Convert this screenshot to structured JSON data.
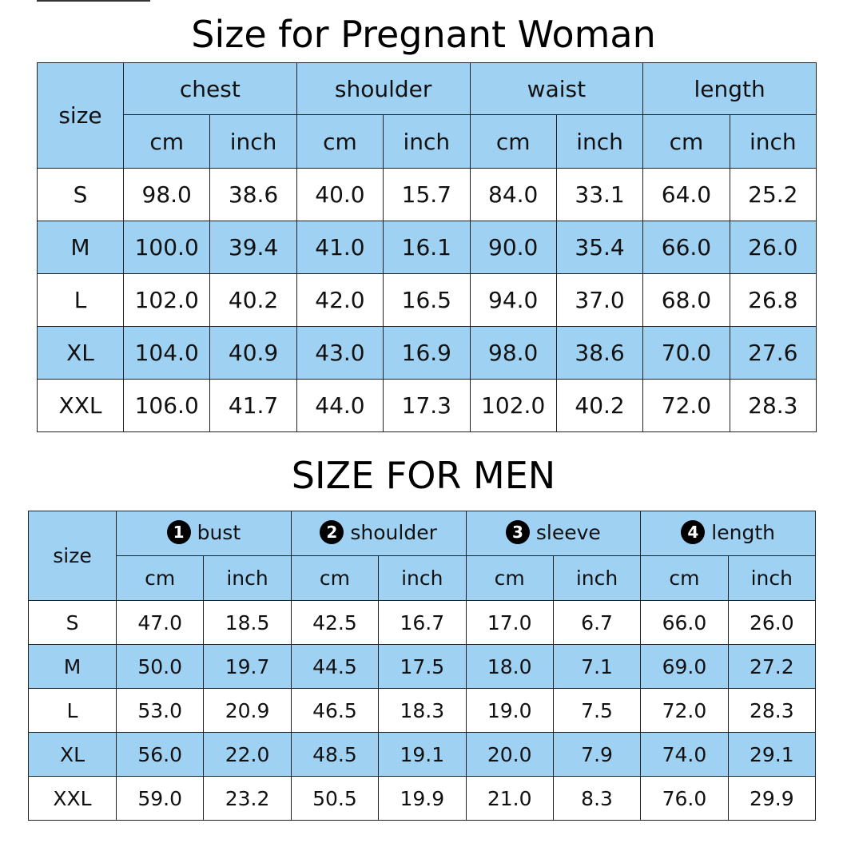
{
  "title_pregnant": "Size for Pregnant Woman",
  "title_men": "SIZE FOR MEN",
  "pregnant_table": {
    "size_label": "size",
    "groups": [
      "chest",
      "shoulder",
      "waist",
      "length"
    ],
    "units": [
      "cm",
      "inch",
      "cm",
      "inch",
      "cm",
      "inch",
      "cm",
      "inch"
    ],
    "rows": [
      {
        "size": "S",
        "values": [
          "98.0",
          "38.6",
          "40.0",
          "15.7",
          "84.0",
          "33.1",
          "64.0",
          "25.2"
        ]
      },
      {
        "size": "M",
        "values": [
          "100.0",
          "39.4",
          "41.0",
          "16.1",
          "90.0",
          "35.4",
          "66.0",
          "26.0"
        ]
      },
      {
        "size": "L",
        "values": [
          "102.0",
          "40.2",
          "42.0",
          "16.5",
          "94.0",
          "37.0",
          "68.0",
          "26.8"
        ]
      },
      {
        "size": "XL",
        "values": [
          "104.0",
          "40.9",
          "43.0",
          "16.9",
          "98.0",
          "38.6",
          "70.0",
          "27.6"
        ]
      },
      {
        "size": "XXL",
        "values": [
          "106.0",
          "41.7",
          "44.0",
          "17.3",
          "102.0",
          "40.2",
          "72.0",
          "28.3"
        ]
      }
    ]
  },
  "men_table": {
    "size_label": "size",
    "groups": [
      {
        "number": "1",
        "label": "bust"
      },
      {
        "number": "2",
        "label": "shoulder"
      },
      {
        "number": "3",
        "label": "sleeve"
      },
      {
        "number": "4",
        "label": "length"
      }
    ],
    "units": [
      "cm",
      "inch",
      "cm",
      "inch",
      "cm",
      "inch",
      "cm",
      "inch"
    ],
    "rows": [
      {
        "size": "S",
        "values": [
          "47.0",
          "18.5",
          "42.5",
          "16.7",
          "17.0",
          "6.7",
          "66.0",
          "26.0"
        ]
      },
      {
        "size": "M",
        "values": [
          "50.0",
          "19.7",
          "44.5",
          "17.5",
          "18.0",
          "7.1",
          "69.0",
          "27.2"
        ]
      },
      {
        "size": "L",
        "values": [
          "53.0",
          "20.9",
          "46.5",
          "18.3",
          "19.0",
          "7.5",
          "72.0",
          "28.3"
        ]
      },
      {
        "size": "XL",
        "values": [
          "56.0",
          "22.0",
          "48.5",
          "19.1",
          "20.0",
          "7.9",
          "74.0",
          "29.1"
        ]
      },
      {
        "size": "XXL",
        "values": [
          "59.0",
          "23.2",
          "50.5",
          "19.9",
          "21.0",
          "8.3",
          "76.0",
          "29.9"
        ]
      }
    ]
  },
  "colors": {
    "header_blue": "#9fd1f3",
    "row_alt_blue": "#9fd1f3",
    "row_white": "#ffffff",
    "border": "#222222"
  }
}
